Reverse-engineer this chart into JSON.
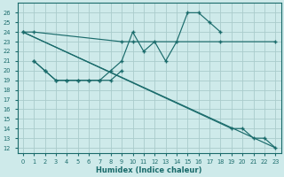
{
  "xlabel": "Humidex (Indice chaleur)",
  "background_color": "#ceeaea",
  "grid_color": "#aacccc",
  "line_color": "#1a6b6b",
  "xlim": [
    -0.5,
    23.5
  ],
  "ylim": [
    11.5,
    27.0
  ],
  "xticks": [
    0,
    1,
    2,
    3,
    4,
    5,
    6,
    7,
    8,
    9,
    10,
    11,
    12,
    13,
    14,
    15,
    16,
    17,
    18,
    19,
    20,
    21,
    22,
    23
  ],
  "yticks": [
    12,
    13,
    14,
    15,
    16,
    17,
    18,
    19,
    20,
    21,
    22,
    23,
    24,
    25,
    26
  ],
  "line1_x": [
    0,
    1,
    9,
    10,
    18,
    23
  ],
  "line1_y": [
    24,
    24,
    23,
    23,
    23,
    23
  ],
  "line2_x": [
    1,
    2,
    3,
    4,
    5,
    6,
    7,
    8,
    9,
    10,
    11,
    12,
    13,
    14,
    15,
    16,
    17,
    18
  ],
  "line2_y": [
    21,
    20,
    19,
    19,
    19,
    19,
    19,
    20,
    21,
    24,
    22,
    23,
    21,
    23,
    26,
    26,
    25,
    24
  ],
  "line3_x": [
    1,
    2,
    3,
    4,
    5,
    6,
    7,
    8,
    9
  ],
  "line3_y": [
    21,
    20,
    19,
    19,
    19,
    19,
    19,
    19,
    20
  ],
  "line4_x": [
    0,
    19,
    20,
    21,
    22,
    23
  ],
  "line4_y": [
    24,
    14,
    14,
    13,
    13,
    12
  ]
}
